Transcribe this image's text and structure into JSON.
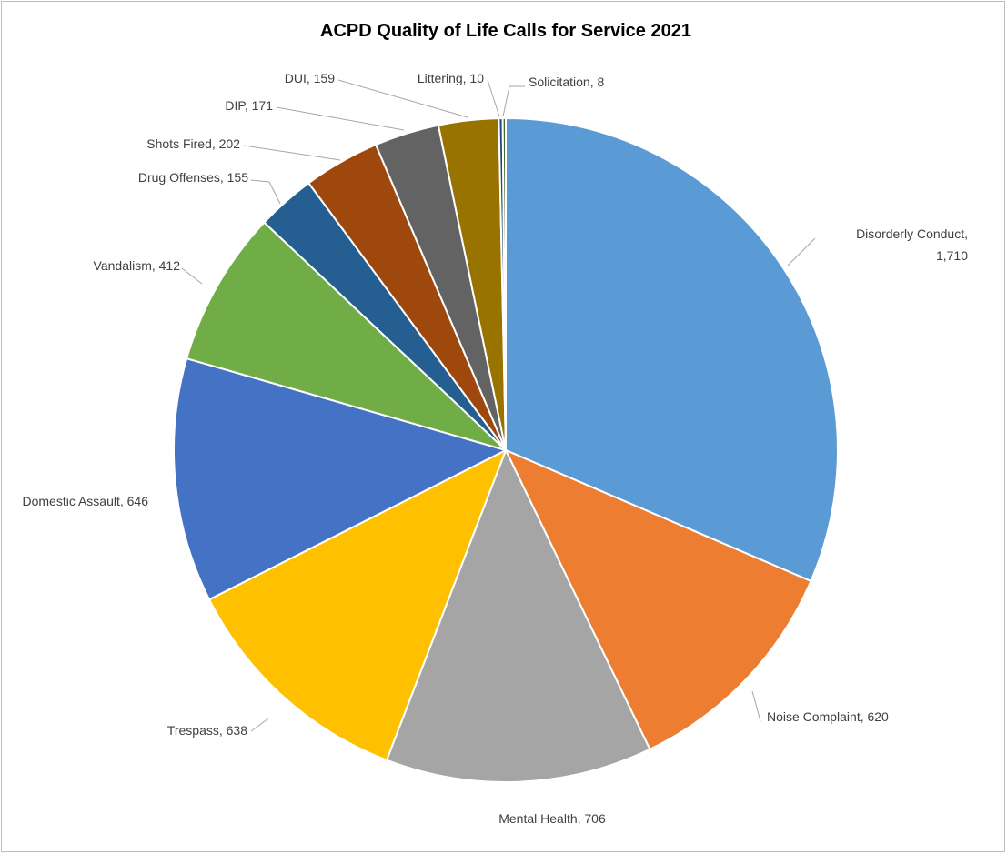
{
  "chart_data": {
    "type": "pie",
    "title": "ACPD Quality of Life Calls for Service 2021",
    "start_angle_deg": 0,
    "direction": "clockwise",
    "slices": [
      {
        "label": "Disorderly Conduct",
        "value": 1710,
        "display": "Disorderly Conduct,|1,710",
        "color": "#5B9BD5"
      },
      {
        "label": "Noise Complaint",
        "value": 620,
        "display": "Noise Complaint, 620",
        "color": "#ED7D31"
      },
      {
        "label": "Mental Health",
        "value": 706,
        "display": "Mental Health, 706",
        "color": "#A5A5A5"
      },
      {
        "label": "Trespass",
        "value": 638,
        "display": "Trespass, 638",
        "color": "#FFC000"
      },
      {
        "label": "Domestic Assault",
        "value": 646,
        "display": "Domestic Assault, 646",
        "color": "#4472C4"
      },
      {
        "label": "Vandalism",
        "value": 412,
        "display": "Vandalism, 412",
        "color": "#70AD47"
      },
      {
        "label": "Drug Offenses",
        "value": 155,
        "display": "Drug Offenses, 155",
        "color": "#255E91"
      },
      {
        "label": "Shots Fired",
        "value": 202,
        "display": "Shots Fired, 202",
        "color": "#9E480E"
      },
      {
        "label": "DIP",
        "value": 171,
        "display": "DIP, 171",
        "color": "#636363"
      },
      {
        "label": "DUI",
        "value": 159,
        "display": "DUI, 159",
        "color": "#997300"
      },
      {
        "label": "Littering",
        "value": 10,
        "display": "Littering, 10",
        "color": "#264478"
      },
      {
        "label": "Solicitation",
        "value": 8,
        "display": "Solicitation, 8",
        "color": "#43682B"
      }
    ]
  }
}
